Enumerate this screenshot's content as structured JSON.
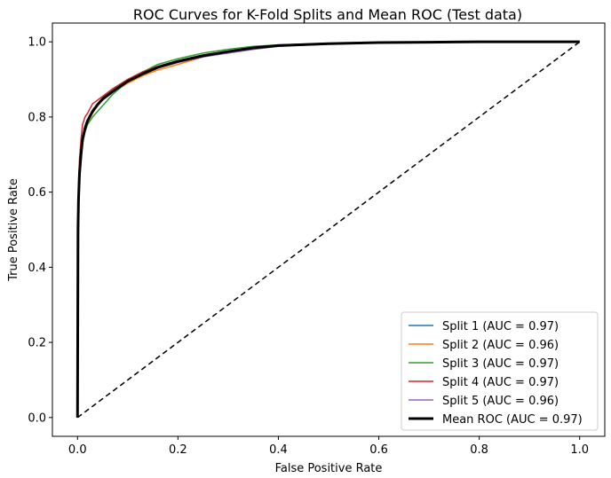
{
  "chart_data": {
    "type": "line",
    "title": "ROC Curves for K-Fold Splits and Mean ROC (Test data)",
    "xlabel": "False Positive Rate",
    "ylabel": "True Positive Rate",
    "xlim": [
      -0.05,
      1.05
    ],
    "ylim": [
      -0.05,
      1.05
    ],
    "xticks": [
      0.0,
      0.2,
      0.4,
      0.6,
      0.8,
      1.0
    ],
    "yticks": [
      0.0,
      0.2,
      0.4,
      0.6,
      0.8,
      1.0
    ],
    "tick_labels": [
      "0.0",
      "0.2",
      "0.4",
      "0.6",
      "0.8",
      "1.0"
    ],
    "grid": false,
    "legend_position": "lower-right",
    "series": [
      {
        "name": "Split 1 (AUC = 0.97)",
        "color": "#1f77b4",
        "x": [
          0,
          0.001,
          0.002,
          0.004,
          0.007,
          0.01,
          0.015,
          0.02,
          0.03,
          0.04,
          0.05,
          0.07,
          0.1,
          0.13,
          0.16,
          0.2,
          0.25,
          0.3,
          0.35,
          0.4,
          0.5,
          0.6,
          0.7,
          0.8,
          0.9,
          1.0
        ],
        "y": [
          0,
          0.5,
          0.58,
          0.65,
          0.7,
          0.74,
          0.77,
          0.79,
          0.815,
          0.835,
          0.85,
          0.87,
          0.9,
          0.92,
          0.935,
          0.95,
          0.965,
          0.975,
          0.985,
          0.99,
          0.995,
          0.998,
          0.999,
          1.0,
          1.0,
          1.0
        ]
      },
      {
        "name": "Split 2 (AUC = 0.96)",
        "color": "#ff7f0e",
        "x": [
          0,
          0.001,
          0.002,
          0.004,
          0.007,
          0.01,
          0.015,
          0.02,
          0.03,
          0.04,
          0.05,
          0.07,
          0.1,
          0.13,
          0.16,
          0.2,
          0.25,
          0.3,
          0.35,
          0.4,
          0.5,
          0.6,
          0.7,
          0.8,
          0.9,
          1.0
        ],
        "y": [
          0,
          0.48,
          0.57,
          0.64,
          0.69,
          0.73,
          0.765,
          0.785,
          0.81,
          0.83,
          0.845,
          0.865,
          0.89,
          0.91,
          0.925,
          0.94,
          0.96,
          0.972,
          0.983,
          0.99,
          0.995,
          0.998,
          0.999,
          1.0,
          1.0,
          1.0
        ]
      },
      {
        "name": "Split 3 (AUC = 0.97)",
        "color": "#2ca02c",
        "x": [
          0,
          0.001,
          0.002,
          0.004,
          0.007,
          0.01,
          0.015,
          0.02,
          0.03,
          0.04,
          0.05,
          0.07,
          0.1,
          0.13,
          0.16,
          0.2,
          0.25,
          0.3,
          0.35,
          0.4,
          0.5,
          0.6,
          0.7,
          0.8,
          0.9,
          1.0
        ],
        "y": [
          0,
          0.49,
          0.57,
          0.64,
          0.69,
          0.73,
          0.76,
          0.78,
          0.8,
          0.815,
          0.83,
          0.86,
          0.895,
          0.92,
          0.94,
          0.955,
          0.97,
          0.98,
          0.988,
          0.992,
          0.996,
          0.998,
          0.999,
          1.0,
          1.0,
          1.0
        ]
      },
      {
        "name": "Split 4 (AUC = 0.97)",
        "color": "#d62728",
        "x": [
          0,
          0.001,
          0.002,
          0.004,
          0.007,
          0.01,
          0.015,
          0.02,
          0.03,
          0.04,
          0.05,
          0.07,
          0.1,
          0.13,
          0.16,
          0.2,
          0.25,
          0.3,
          0.35,
          0.4,
          0.5,
          0.6,
          0.7,
          0.8,
          0.9,
          1.0
        ],
        "y": [
          0,
          0.52,
          0.62,
          0.69,
          0.74,
          0.78,
          0.8,
          0.81,
          0.835,
          0.845,
          0.855,
          0.875,
          0.9,
          0.92,
          0.935,
          0.95,
          0.965,
          0.975,
          0.985,
          0.99,
          0.995,
          0.998,
          0.999,
          1.0,
          1.0,
          1.0
        ]
      },
      {
        "name": "Split 5 (AUC = 0.96)",
        "color": "#9467bd",
        "x": [
          0,
          0.001,
          0.002,
          0.004,
          0.007,
          0.01,
          0.015,
          0.02,
          0.03,
          0.04,
          0.05,
          0.07,
          0.1,
          0.13,
          0.16,
          0.2,
          0.25,
          0.3,
          0.35,
          0.4,
          0.5,
          0.6,
          0.7,
          0.8,
          0.9,
          1.0
        ],
        "y": [
          0,
          0.5,
          0.58,
          0.65,
          0.7,
          0.74,
          0.77,
          0.79,
          0.815,
          0.83,
          0.845,
          0.865,
          0.895,
          0.915,
          0.93,
          0.945,
          0.96,
          0.97,
          0.98,
          0.988,
          0.994,
          0.997,
          0.999,
          1.0,
          1.0,
          1.0
        ]
      },
      {
        "name": "Mean ROC (AUC = 0.97)",
        "color": "#000000",
        "x": [
          0,
          0.001,
          0.002,
          0.004,
          0.007,
          0.01,
          0.015,
          0.02,
          0.03,
          0.04,
          0.05,
          0.07,
          0.1,
          0.13,
          0.16,
          0.2,
          0.25,
          0.3,
          0.35,
          0.4,
          0.5,
          0.6,
          0.7,
          0.8,
          0.9,
          1.0
        ],
        "y": [
          0,
          0.5,
          0.58,
          0.65,
          0.7,
          0.74,
          0.77,
          0.79,
          0.815,
          0.833,
          0.848,
          0.868,
          0.895,
          0.915,
          0.932,
          0.948,
          0.963,
          0.974,
          0.984,
          0.99,
          0.995,
          0.998,
          0.999,
          1.0,
          1.0,
          1.0
        ]
      }
    ],
    "reference_line": {
      "x": [
        0,
        1
      ],
      "y": [
        0,
        1
      ],
      "style": "dashed",
      "color": "#000000"
    }
  }
}
